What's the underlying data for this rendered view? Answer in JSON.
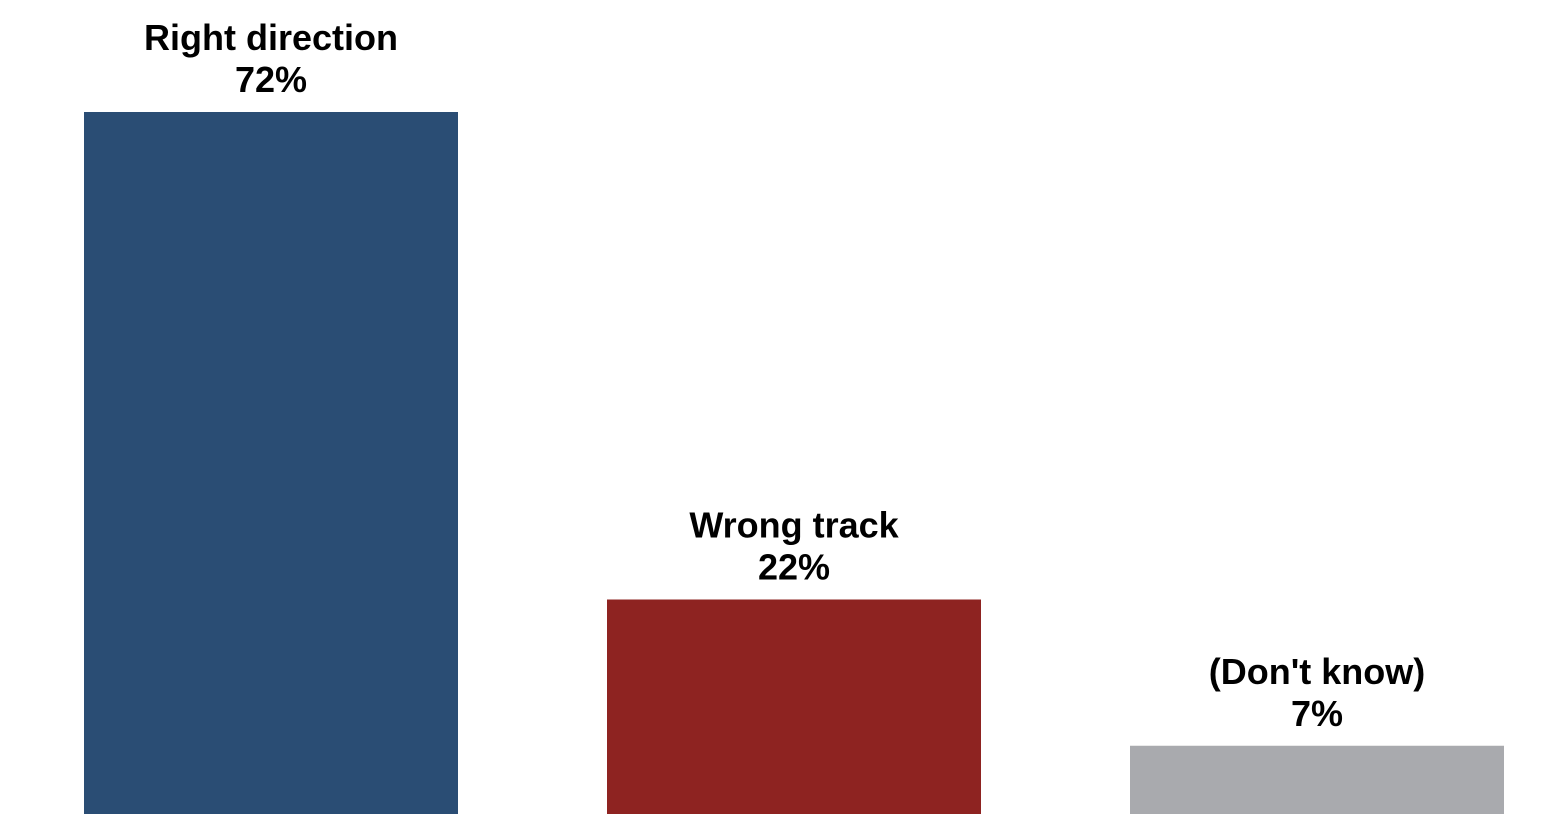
{
  "chart_data": {
    "type": "bar",
    "title": "",
    "xlabel": "",
    "ylabel": "",
    "categories": [
      "Right direction",
      "Wrong track",
      "(Don't know)"
    ],
    "values": [
      72,
      22,
      7
    ],
    "value_labels": [
      "72%",
      "22%",
      "7%"
    ],
    "colors": [
      "#2a4d74",
      "#8e2321",
      "#a9aaae"
    ],
    "ylim": [
      0,
      72
    ],
    "grid": false,
    "legend": "none"
  }
}
